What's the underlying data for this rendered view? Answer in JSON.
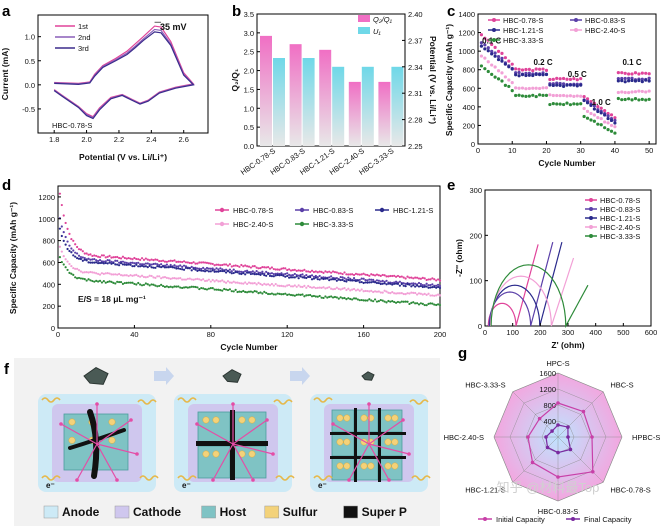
{
  "panel_labels": {
    "a": "a",
    "b": "b",
    "c": "c",
    "d": "d",
    "e": "e",
    "f": "f",
    "g": "g"
  },
  "watermark": "知乎 @材料最Top",
  "chart_data": [
    {
      "id": "a",
      "type": "line",
      "xlabel": "Potential (V vs. Li/Li⁺)",
      "ylabel": "Current (mA)",
      "xlim": [
        1.7,
        2.75
      ],
      "ylim": [
        -1.0,
        1.45
      ],
      "xticks": [
        1.8,
        2.0,
        2.2,
        2.4,
        2.6
      ],
      "yticks": [
        -0.5,
        0.0,
        0.5,
        1.0
      ],
      "annotation": "35 mV",
      "sample_label": "HBC-0.78-S",
      "series": [
        {
          "name": "1st",
          "color": "#e0449a",
          "x": [
            1.8,
            1.95,
            2.02,
            2.05,
            2.1,
            2.18,
            2.25,
            2.3,
            2.35,
            2.42,
            2.46,
            2.52,
            2.6,
            2.66
          ],
          "y": [
            0.05,
            0.03,
            0.06,
            0.22,
            0.4,
            0.55,
            0.7,
            0.85,
            1.0,
            1.22,
            1.2,
            0.9,
            0.25,
            0.02
          ],
          "ret_x": [
            2.66,
            2.55,
            2.45,
            2.38,
            2.33,
            2.28,
            2.22,
            2.15,
            2.08,
            2.04,
            2.0,
            1.95,
            1.85,
            1.8
          ],
          "ret_y": [
            0.02,
            -0.05,
            -0.15,
            -0.32,
            -0.38,
            -0.3,
            -0.2,
            -0.26,
            -0.48,
            -0.66,
            -0.6,
            -0.45,
            -0.22,
            -0.1
          ]
        },
        {
          "name": "2nd",
          "color": "#8a5fb8",
          "x": [
            1.8,
            1.95,
            2.02,
            2.05,
            2.1,
            2.18,
            2.25,
            2.3,
            2.35,
            2.42,
            2.46,
            2.52,
            2.6,
            2.66
          ],
          "y": [
            0.04,
            0.02,
            0.05,
            0.2,
            0.38,
            0.52,
            0.66,
            0.8,
            0.95,
            1.15,
            1.13,
            0.85,
            0.22,
            0.01
          ],
          "ret_x": [
            2.66,
            2.55,
            2.45,
            2.38,
            2.33,
            2.28,
            2.22,
            2.15,
            2.08,
            2.04,
            2.0,
            1.95,
            1.85,
            1.8
          ],
          "ret_y": [
            0.01,
            -0.06,
            -0.16,
            -0.33,
            -0.39,
            -0.31,
            -0.21,
            -0.28,
            -0.5,
            -0.68,
            -0.62,
            -0.46,
            -0.23,
            -0.11
          ]
        },
        {
          "name": "3rd",
          "color": "#3b2c8c",
          "x": [
            1.8,
            1.95,
            2.02,
            2.05,
            2.1,
            2.18,
            2.25,
            2.3,
            2.35,
            2.42,
            2.46,
            2.52,
            2.6,
            2.66
          ],
          "y": [
            0.03,
            0.01,
            0.04,
            0.18,
            0.36,
            0.5,
            0.63,
            0.77,
            0.92,
            1.1,
            1.08,
            0.82,
            0.2,
            0.0
          ],
          "ret_x": [
            2.66,
            2.55,
            2.45,
            2.38,
            2.33,
            2.28,
            2.22,
            2.15,
            2.08,
            2.04,
            2.0,
            1.95,
            1.85,
            1.8
          ],
          "ret_y": [
            0.0,
            -0.07,
            -0.17,
            -0.34,
            -0.4,
            -0.32,
            -0.22,
            -0.29,
            -0.52,
            -0.7,
            -0.64,
            -0.47,
            -0.24,
            -0.12
          ]
        }
      ]
    },
    {
      "id": "b",
      "type": "bar",
      "categories": [
        "HBC-0.78-S",
        "HBC-0.83-S",
        "HBC-1.21-S",
        "HBC-2.40-S",
        "HBC-3.33-S"
      ],
      "ylabel_left": "Q₂/Q₁",
      "ylabel_right": "Potential (V vs. Li/Li⁺)",
      "ylim_left": [
        0,
        3.5
      ],
      "yticks_left": [
        0.0,
        0.5,
        1.0,
        1.5,
        2.0,
        2.5,
        3.0,
        3.5
      ],
      "ylim_right": [
        2.25,
        2.4
      ],
      "yticks_right": [
        2.25,
        2.28,
        2.31,
        2.34,
        2.37,
        2.4
      ],
      "series": [
        {
          "name": "Q₂/Q₁",
          "color": "#f06fc4",
          "axis": "left",
          "values": [
            2.92,
            2.7,
            2.55,
            1.7,
            1.7
          ]
        },
        {
          "name": "U₁",
          "color": "#6fd8e8",
          "axis": "right",
          "values": [
            2.35,
            2.35,
            2.34,
            2.34,
            2.34
          ]
        }
      ]
    },
    {
      "id": "c",
      "type": "scatter",
      "xlabel": "Cycle Number",
      "ylabel": "Specific Capacity (mAh g⁻¹)",
      "xlim": [
        0,
        52
      ],
      "ylim": [
        0,
        1400
      ],
      "xticks": [
        0,
        10,
        20,
        30,
        40,
        50
      ],
      "yticks": [
        0,
        200,
        400,
        600,
        800,
        1000,
        1200,
        1400
      ],
      "annotations": [
        "0.1 C",
        "0.2 C",
        "0.5 C",
        "1.0 C",
        "0.1 C"
      ],
      "series": [
        {
          "name": "HBC-0.78-S",
          "color": "#e0449a",
          "levels": [
            1180,
            800,
            700,
            510,
            290,
            760
          ]
        },
        {
          "name": "HBC-0.83-S",
          "color": "#5a3fa8",
          "levels": [
            1100,
            760,
            650,
            480,
            250,
            700
          ]
        },
        {
          "name": "HBC-1.21-S",
          "color": "#2a2a8c",
          "levels": [
            1050,
            740,
            630,
            460,
            230,
            680
          ]
        },
        {
          "name": "HBC-2.40-S",
          "color": "#f2a0d6",
          "levels": [
            950,
            600,
            520,
            380,
            180,
            560
          ]
        },
        {
          "name": "HBC-3.33-S",
          "color": "#2e8b3a",
          "levels": [
            850,
            520,
            430,
            300,
            120,
            480
          ]
        }
      ]
    },
    {
      "id": "d",
      "type": "scatter",
      "xlabel": "Cycle Number",
      "ylabel": "Specific Capacity (mAh g⁻¹)",
      "xlim": [
        0,
        200
      ],
      "ylim": [
        0,
        1300
      ],
      "xticks": [
        0,
        40,
        80,
        120,
        160,
        200
      ],
      "yticks": [
        0,
        200,
        400,
        600,
        800,
        1000,
        1200
      ],
      "annotation": "E/S = 18 μL mg⁻¹",
      "series": [
        {
          "name": "HBC-0.78-S",
          "color": "#e0449a",
          "start": 1230,
          "mid": 660,
          "end": 440
        },
        {
          "name": "HBC-0.83-S",
          "color": "#5a3fa8",
          "start": 1000,
          "mid": 620,
          "end": 390
        },
        {
          "name": "HBC-1.21-S",
          "color": "#2a2a8c",
          "start": 900,
          "mid": 600,
          "end": 370
        },
        {
          "name": "HBC-2.40-S",
          "color": "#f2a0d6",
          "start": 750,
          "mid": 500,
          "end": 300
        },
        {
          "name": "HBC-3.33-S",
          "color": "#2e8b3a",
          "start": 650,
          "mid": 430,
          "end": 210
        }
      ]
    },
    {
      "id": "e",
      "type": "line",
      "xlabel": "Z' (ohm)",
      "ylabel": "-Z'' (ohm)",
      "xlim": [
        0,
        600
      ],
      "ylim": [
        0,
        300
      ],
      "xticks": [
        0,
        100,
        200,
        300,
        400,
        500,
        600
      ],
      "yticks": [
        0,
        100,
        200,
        300
      ],
      "series": [
        {
          "name": "HBC-0.78-S",
          "color": "#e0449a",
          "r0": 12,
          "rct": 100,
          "tail": 180
        },
        {
          "name": "HBC-0.83-S",
          "color": "#5a3fa8",
          "r0": 15,
          "rct": 150,
          "tail": 185
        },
        {
          "name": "HBC-1.21-S",
          "color": "#2a2a8c",
          "r0": 18,
          "rct": 180,
          "tail": 185
        },
        {
          "name": "HBC-2.40-S",
          "color": "#f2a0d6",
          "r0": 20,
          "rct": 220,
          "tail": 150
        },
        {
          "name": "HBC-3.33-S",
          "color": "#2e8b3a",
          "r0": 22,
          "rct": 270,
          "tail": 90
        }
      ]
    },
    {
      "id": "g",
      "type": "radar",
      "axes": [
        "HPC-S",
        "HBC-S",
        "HPBC-S",
        "HBC-0.78-S",
        "HBC-0.83-S",
        "HBC-1.21-S",
        "HBC-2.40-S",
        "HBC-3.33-S"
      ],
      "rmax": 1600,
      "rticks": [
        0,
        400,
        800,
        1200,
        1600
      ],
      "series": [
        {
          "name": "Initial Capacity",
          "color": "#c840a8",
          "values": [
            850,
            900,
            850,
            1230,
            1000,
            900,
            750,
            650
          ]
        },
        {
          "name": "Final Capacity",
          "color": "#7a2aa0",
          "values": [
            300,
            350,
            250,
            440,
            390,
            370,
            300,
            210
          ]
        }
      ]
    }
  ],
  "legends": {
    "a": [
      "1st",
      "2nd",
      "3rd"
    ],
    "b": [
      "Q₂/Q₁",
      "U₁"
    ],
    "c": [
      "HBC-0.78-S",
      "HBC-0.83-S",
      "HBC-1.21-S",
      "HBC-2.40-S",
      "HBC-3.33-S"
    ],
    "d": [
      "HBC-0.78-S",
      "HBC-0.83-S",
      "HBC-1.21-S",
      "HBC-2.40-S",
      "HBC-3.33-S"
    ],
    "e": [
      "HBC-0.78-S",
      "HBC-0.83-S",
      "HBC-1.21-S",
      "HBC-2.40-S",
      "HBC-3.33-S"
    ],
    "g": [
      "Initial Capacity",
      "Final Capacity"
    ]
  },
  "schematic_f": {
    "legend": [
      {
        "label": "Anode",
        "color": "#cdeaf6"
      },
      {
        "label": "Cathode",
        "color": "#cfc7ee"
      },
      {
        "label": "Host",
        "color": "#7fc3c4"
      },
      {
        "label": "Sulfur",
        "color": "#f3d27a"
      },
      {
        "label": "Super P",
        "color": "#111111"
      }
    ],
    "electron_label": "e⁻"
  }
}
